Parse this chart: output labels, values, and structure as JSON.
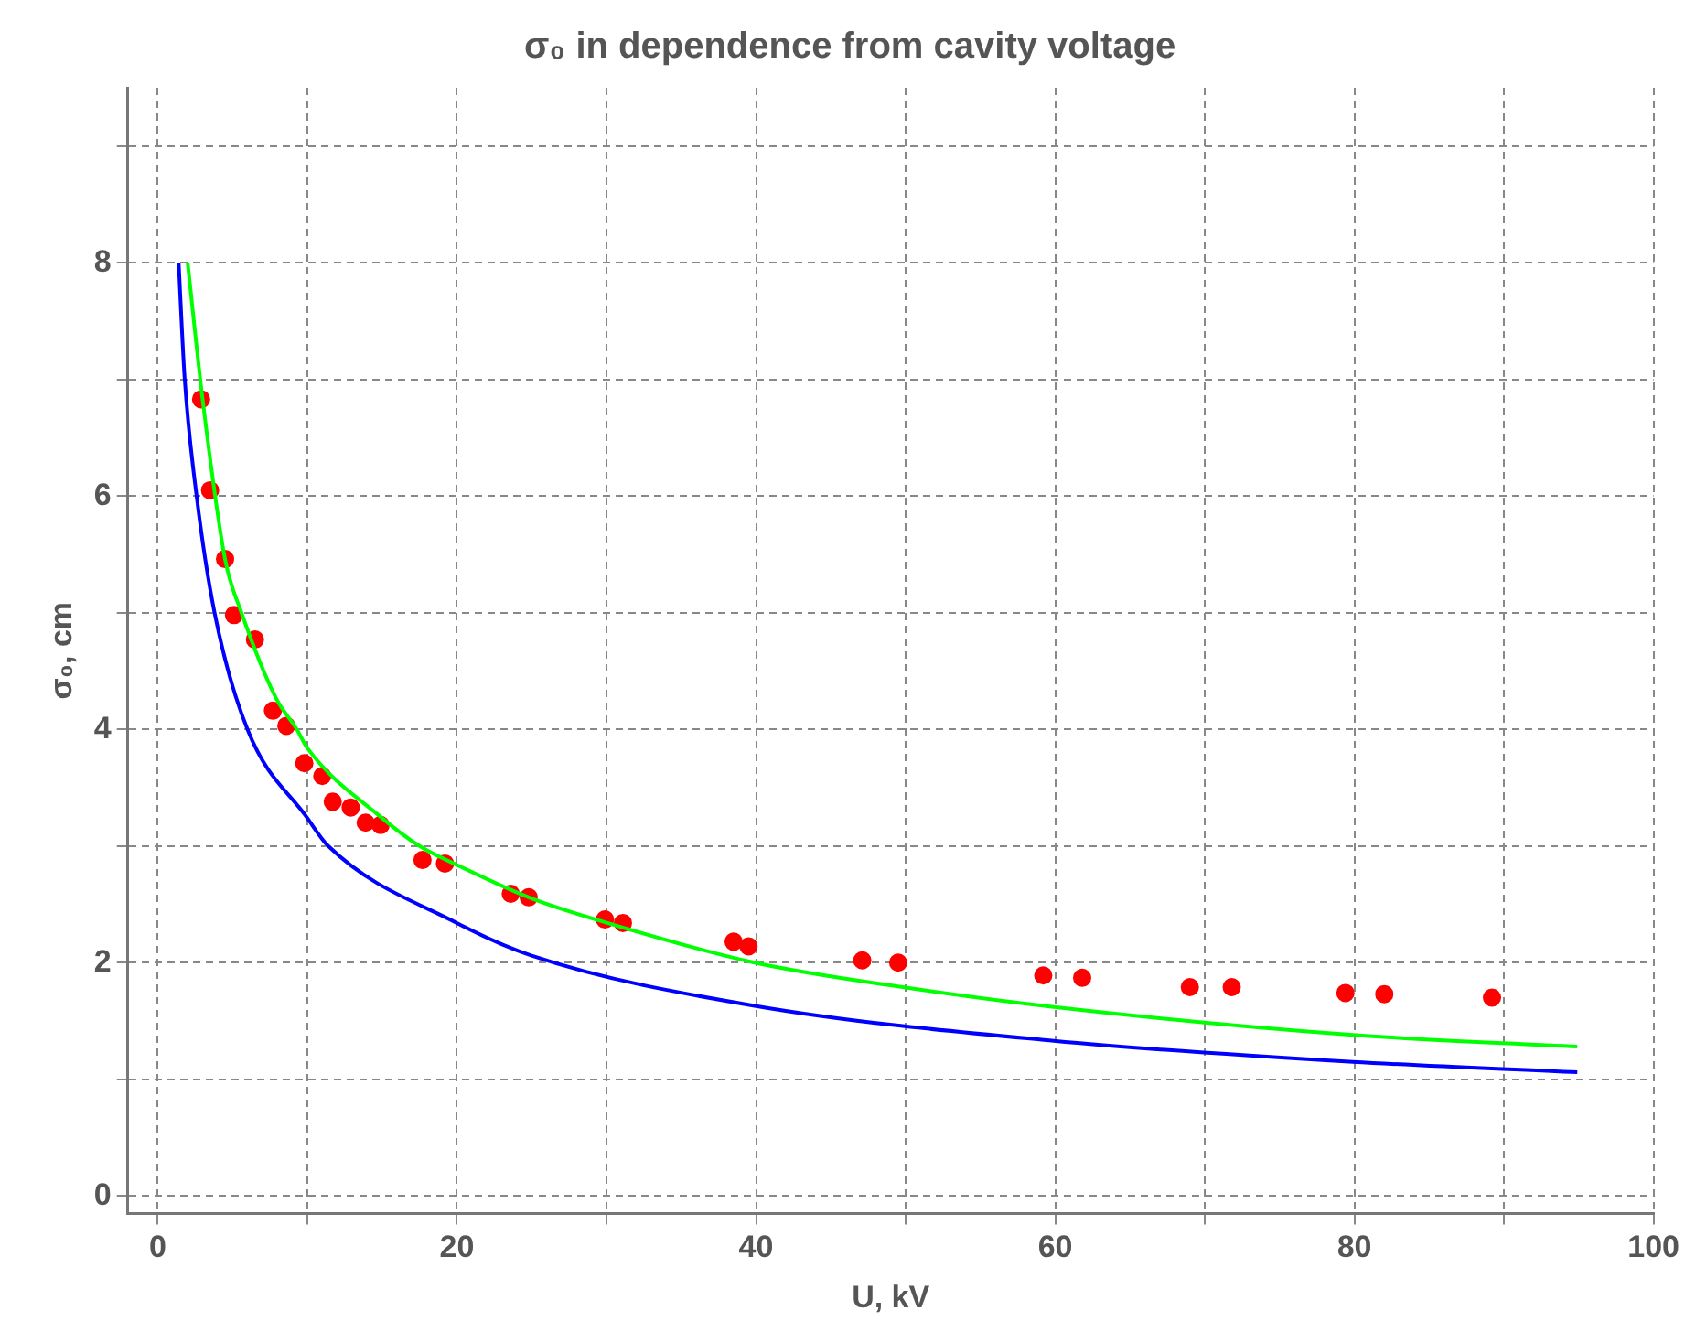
{
  "chart_data": {
    "type": "scatter",
    "title": "σ₀ in dependence from cavity voltage",
    "xlabel": "U, kV",
    "ylabel": "σ₀, cm",
    "xlim": [
      -2,
      100
    ],
    "ylim": [
      -0.15,
      9.5
    ],
    "xticks": [
      0,
      {
        "value": 10,
        "label": null
      },
      20,
      {
        "value": 30,
        "label": null
      },
      40,
      {
        "value": 50,
        "label": null
      },
      60,
      {
        "value": 70,
        "label": null
      },
      80,
      {
        "value": 90,
        "label": null
      },
      100
    ],
    "yticks": [
      0,
      {
        "value": 1,
        "label": null
      },
      2,
      {
        "value": 3,
        "label": null
      },
      4,
      {
        "value": 5,
        "label": null
      },
      6,
      {
        "value": 7,
        "label": null
      },
      8,
      {
        "value": 9,
        "label": null
      }
    ],
    "grid": true,
    "legend": false,
    "series": [
      {
        "type": "line",
        "color": "#0000ff",
        "marker": "none",
        "x": [
          1.4,
          1.8,
          2.6,
          3.8,
          6,
          10,
          11.4,
          20,
          25,
          39.9,
          59.9,
          79.9,
          94.9
        ],
        "values": [
          8,
          7.01,
          6,
          5,
          4,
          3.24,
          3,
          2.34,
          2.06,
          1.63,
          1.33,
          1.15,
          1.06
        ]
      },
      {
        "type": "line",
        "color": "#00ff00",
        "marker": "none",
        "x": [
          2,
          3,
          4.5,
          5.6,
          7.9,
          9.3,
          10,
          14.9,
          17.5,
          19.8,
          25,
          29.8,
          39.9,
          49.8,
          59.9,
          79.9,
          94.9
        ],
        "values": [
          8,
          6.83,
          5.46,
          5,
          4.27,
          4,
          3.84,
          3.25,
          3,
          2.85,
          2.55,
          2.35,
          2,
          1.79,
          1.62,
          1.38,
          1.28
        ]
      },
      {
        "type": "scatter",
        "color": "#ff0000",
        "marker": "circle",
        "x": [
          2.9,
          3.5,
          4.5,
          5.1,
          6.5,
          7.7,
          8.6,
          9.8,
          11,
          11.7,
          12.9,
          13.9,
          14.9,
          17.7,
          19.2,
          23.6,
          24.8,
          29.9,
          31.1,
          38.5,
          39.5,
          47.1,
          49.5,
          59.2,
          61.8,
          69,
          71.8,
          79.4,
          82,
          89.2
        ],
        "values": [
          6.83,
          6.05,
          5.46,
          4.98,
          4.77,
          4.16,
          4.03,
          3.71,
          3.6,
          3.38,
          3.33,
          3.2,
          3.18,
          2.88,
          2.85,
          2.59,
          2.56,
          2.37,
          2.34,
          2.18,
          2.14,
          2.02,
          2,
          1.89,
          1.87,
          1.79,
          1.79,
          1.74,
          1.73,
          1.7
        ]
      }
    ]
  }
}
